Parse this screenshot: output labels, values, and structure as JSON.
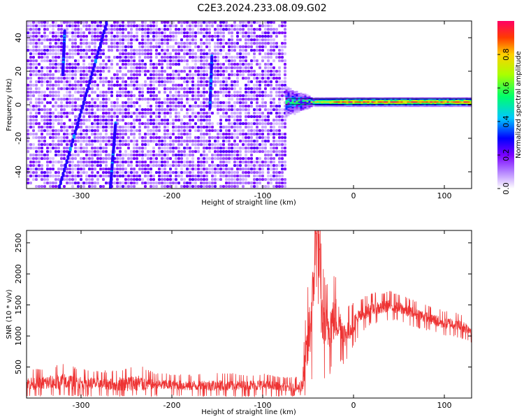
{
  "figure_title": "C2E3.2024.233.08.09.G02",
  "chart_data": [
    {
      "type": "heatmap",
      "xlabel": "Height of straight line (km)",
      "ylabel": "Frequency (Hz)",
      "xlim": [
        -360,
        130
      ],
      "ylim": [
        -50,
        50
      ],
      "xticks": [
        -300,
        -200,
        -100,
        0,
        100
      ],
      "yticks": [
        -40,
        -20,
        0,
        20,
        40
      ],
      "colorbar": {
        "label": "Normalized spectral amplitude",
        "range": [
          0.0,
          1.0
        ],
        "ticks": [
          "0.0",
          "0.2",
          "0.4",
          "0.6",
          "0.8"
        ],
        "colormap": [
          "#ffffff",
          "#b482ff",
          "#7a00ff",
          "#0000ff",
          "#00c8ff",
          "#00ff6a",
          "#aaff00",
          "#ffd000",
          "#ff3c00",
          "#ff0064"
        ]
      },
      "features": {
        "scatter_region_x": [
          -360,
          -75
        ],
        "scatter_typical_value": 0.15,
        "signal_band_x": [
          -75,
          130
        ],
        "signal_band_frequency": 2,
        "signal_band_peak_value": 0.9,
        "streaks": [
          {
            "x_top": -272,
            "y_top": 50,
            "x_bottom": -325,
            "y_bottom": -50
          },
          {
            "x_top": -318,
            "y_top": 45,
            "x_bottom": -320,
            "y_bottom": 20
          },
          {
            "x_top": -262,
            "y_top": -10,
            "x_bottom": -268,
            "y_bottom": -50
          },
          {
            "x_top": -156,
            "y_top": 30,
            "x_bottom": -158,
            "y_bottom": 0
          }
        ]
      },
      "grid": false
    },
    {
      "type": "line",
      "xlabel": "Height of straight line (km)",
      "ylabel": "SNR (10 * v/v)",
      "xlim": [
        -360,
        130
      ],
      "ylim": [
        0,
        2700
      ],
      "xticks": [
        -300,
        -200,
        -100,
        0,
        100
      ],
      "yticks": [
        500,
        1000,
        1500,
        2000,
        2500
      ],
      "series": [
        {
          "color": "#ee3333",
          "x": [
            -360,
            -340,
            -320,
            -300,
            -280,
            -260,
            -240,
            -220,
            -200,
            -180,
            -160,
            -140,
            -120,
            -100,
            -80,
            -70,
            -60,
            -55,
            -50,
            -45,
            -42,
            -40,
            -38,
            -35,
            -30,
            -25,
            -20,
            -15,
            -10,
            -5,
            0,
            10,
            20,
            30,
            40,
            50,
            60,
            70,
            80,
            90,
            100,
            110,
            120,
            130
          ],
          "values": [
            230,
            240,
            260,
            240,
            230,
            220,
            240,
            220,
            210,
            200,
            200,
            205,
            200,
            210,
            180,
            170,
            160,
            300,
            900,
            1500,
            2500,
            2700,
            2300,
            1300,
            1100,
            1200,
            1300,
            1200,
            1000,
            1100,
            1200,
            1350,
            1450,
            1450,
            1500,
            1450,
            1400,
            1350,
            1300,
            1250,
            1200,
            1200,
            1150,
            1100
          ],
          "noise": [
            160,
            180,
            220,
            170,
            150,
            170,
            230,
            140,
            130,
            130,
            140,
            150,
            130,
            140,
            120,
            120,
            130,
            400,
            700,
            900,
            800,
            600,
            800,
            700,
            600,
            600,
            550,
            450,
            350,
            300,
            250,
            200,
            180,
            170,
            170,
            160,
            160,
            160,
            150,
            150,
            150,
            150,
            150,
            150
          ]
        }
      ],
      "grid": false
    }
  ]
}
